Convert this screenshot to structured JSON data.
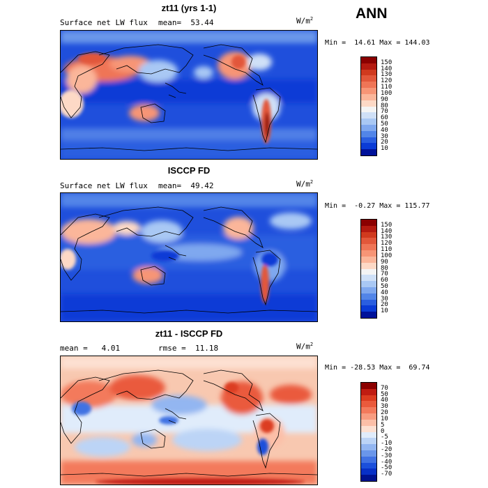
{
  "header": {
    "label": "ANN"
  },
  "panels": [
    {
      "title": "zt11 (yrs 1-1)",
      "left_label": "Surface net LW flux",
      "mid_label": "mean=  53.44",
      "units": "W/m",
      "units_exp": "2",
      "minmax": "Min =  14.61 Max = 144.03",
      "colorbar": {
        "ticks": [
          "150",
          "140",
          "130",
          "120",
          "110",
          "100",
          "90",
          "80",
          "70",
          "60",
          "50",
          "40",
          "30",
          "20",
          "10"
        ],
        "colors": [
          "#8b0000",
          "#b41a10",
          "#d03a1e",
          "#e2573a",
          "#ef7556",
          "#f79576",
          "#fbb69a",
          "#fdd9c6",
          "#f4f4f4",
          "#cfe0f7",
          "#a9c8f4",
          "#7fa8ef",
          "#5285e8",
          "#2a5ee0",
          "#0a3bd6",
          "#00129a"
        ]
      }
    },
    {
      "title": "ISCCP FD",
      "left_label": "Surface net LW flux",
      "mid_label": "mean=  49.42",
      "units": "W/m",
      "units_exp": "2",
      "minmax": "Min =  -0.27 Max = 115.77",
      "colorbar": {
        "ticks": [
          "150",
          "140",
          "130",
          "120",
          "110",
          "100",
          "90",
          "80",
          "70",
          "60",
          "50",
          "40",
          "30",
          "20",
          "10"
        ],
        "colors": [
          "#8b0000",
          "#b41a10",
          "#d03a1e",
          "#e2573a",
          "#ef7556",
          "#f79576",
          "#fbb69a",
          "#fdd9c6",
          "#f4f4f4",
          "#cfe0f7",
          "#a9c8f4",
          "#7fa8ef",
          "#5285e8",
          "#2a5ee0",
          "#0a3bd6",
          "#00129a"
        ]
      }
    },
    {
      "title": "zt11 - ISCCP FD",
      "left_label": "mean =   4.01",
      "mid_label": "rmse =  11.18",
      "units": "W/m",
      "units_exp": "2",
      "minmax": "Min = -28.53 Max =  69.74",
      "colorbar": {
        "ticks": [
          "70",
          "50",
          "40",
          "30",
          "20",
          "10",
          "5",
          "0",
          "-5",
          "-10",
          "-20",
          "-30",
          "-40",
          "-50",
          "-70"
        ],
        "colors": [
          "#8b0000",
          "#c01c12",
          "#dc3c20",
          "#ea5a3c",
          "#f37a5c",
          "#f89c80",
          "#fcbfa8",
          "#fde0d2",
          "#e0ecfb",
          "#bcd4f6",
          "#93b6f1",
          "#6a96ea",
          "#4172e3",
          "#1b4fdb",
          "#0830c6",
          "#00128f"
        ]
      }
    }
  ]
}
